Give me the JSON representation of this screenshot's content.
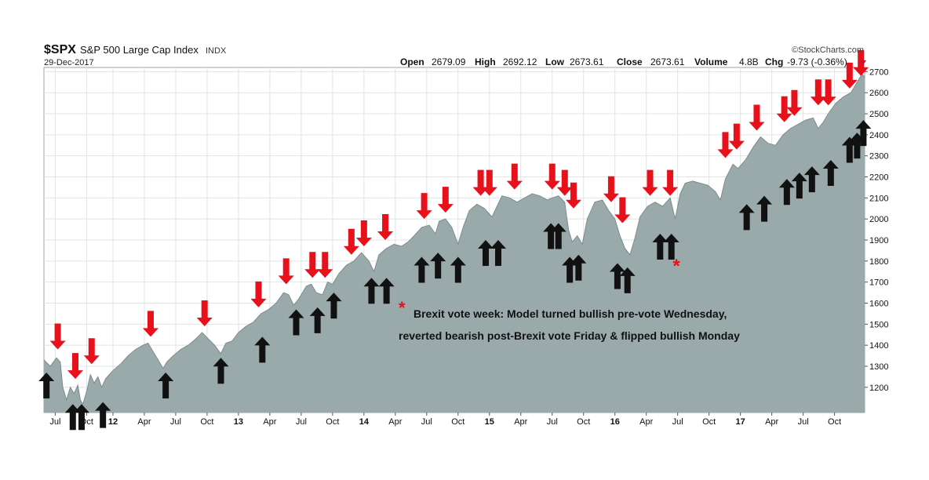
{
  "header": {
    "ticker": "$SPX",
    "index_name": "S&P 500 Large Cap Index",
    "exchange": "INDX",
    "date": "29-Dec-2017",
    "watermark": "©StockCharts.com",
    "open_label": "Open",
    "open_value": "2679.09",
    "high_label": "High",
    "high_value": "2692.12",
    "low_label": "Low",
    "low_value": "2673.61",
    "close_label": "Close",
    "close_value": "2673.61",
    "volume_label": "Volume",
    "volume_value": "4.8B",
    "chg_label": "Chg",
    "chg_value": "-9.73 (-0.36%)"
  },
  "annotation": {
    "asterisk": "*",
    "line1": "Brexit vote week: Model turned bullish pre-vote Wednesday,",
    "line2": "reverted bearish post-Brexit vote Friday & flipped bullish Monday"
  },
  "colors": {
    "area_fill": "#9aa9aa",
    "area_line": "#7d8c8e",
    "bearish_arrow": "#e8101a",
    "bullish_arrow": "#111111",
    "grid": "#dfe4e5"
  },
  "chart_data": {
    "type": "area",
    "title": "$SPX S&P 500 Large Cap Index INDX",
    "x_range": [
      2011.45,
      2017.99
    ],
    "ylim": [
      1080,
      2720
    ],
    "y_ticks": [
      1200,
      1300,
      1400,
      1500,
      1600,
      1700,
      1800,
      1900,
      2000,
      2100,
      2200,
      2300,
      2400,
      2500,
      2600,
      2700
    ],
    "x_ticks": [
      {
        "t": 2011.54,
        "label": "Jul"
      },
      {
        "t": 2011.79,
        "label": "Oct"
      },
      {
        "t": 2012.0,
        "label": "12"
      },
      {
        "t": 2012.25,
        "label": "Apr"
      },
      {
        "t": 2012.5,
        "label": "Jul"
      },
      {
        "t": 2012.75,
        "label": "Oct"
      },
      {
        "t": 2013.0,
        "label": "13"
      },
      {
        "t": 2013.25,
        "label": "Apr"
      },
      {
        "t": 2013.5,
        "label": "Jul"
      },
      {
        "t": 2013.75,
        "label": "Oct"
      },
      {
        "t": 2014.0,
        "label": "14"
      },
      {
        "t": 2014.25,
        "label": "Apr"
      },
      {
        "t": 2014.5,
        "label": "Jul"
      },
      {
        "t": 2014.75,
        "label": "Oct"
      },
      {
        "t": 2015.0,
        "label": "15"
      },
      {
        "t": 2015.25,
        "label": "Apr"
      },
      {
        "t": 2015.5,
        "label": "Jul"
      },
      {
        "t": 2015.75,
        "label": "Oct"
      },
      {
        "t": 2016.0,
        "label": "16"
      },
      {
        "t": 2016.25,
        "label": "Apr"
      },
      {
        "t": 2016.5,
        "label": "Jul"
      },
      {
        "t": 2016.75,
        "label": "Oct"
      },
      {
        "t": 2017.0,
        "label": "17"
      },
      {
        "t": 2017.25,
        "label": "Apr"
      },
      {
        "t": 2017.5,
        "label": "Jul"
      },
      {
        "t": 2017.75,
        "label": "Oct"
      }
    ],
    "series": [
      {
        "name": "$SPX close",
        "points": [
          [
            2011.45,
            1330
          ],
          [
            2011.5,
            1300
          ],
          [
            2011.55,
            1340
          ],
          [
            2011.58,
            1320
          ],
          [
            2011.6,
            1200
          ],
          [
            2011.63,
            1140
          ],
          [
            2011.66,
            1200
          ],
          [
            2011.69,
            1170
          ],
          [
            2011.72,
            1210
          ],
          [
            2011.74,
            1140
          ],
          [
            2011.76,
            1120
          ],
          [
            2011.79,
            1180
          ],
          [
            2011.82,
            1260
          ],
          [
            2011.85,
            1220
          ],
          [
            2011.88,
            1250
          ],
          [
            2011.91,
            1200
          ],
          [
            2011.94,
            1240
          ],
          [
            2011.97,
            1260
          ],
          [
            2012.0,
            1280
          ],
          [
            2012.06,
            1310
          ],
          [
            2012.12,
            1350
          ],
          [
            2012.18,
            1380
          ],
          [
            2012.24,
            1400
          ],
          [
            2012.28,
            1410
          ],
          [
            2012.32,
            1370
          ],
          [
            2012.36,
            1330
          ],
          [
            2012.4,
            1290
          ],
          [
            2012.43,
            1320
          ],
          [
            2012.48,
            1350
          ],
          [
            2012.54,
            1380
          ],
          [
            2012.6,
            1400
          ],
          [
            2012.66,
            1430
          ],
          [
            2012.71,
            1460
          ],
          [
            2012.76,
            1430
          ],
          [
            2012.81,
            1400
          ],
          [
            2012.86,
            1360
          ],
          [
            2012.9,
            1410
          ],
          [
            2012.95,
            1420
          ],
          [
            2013.0,
            1460
          ],
          [
            2013.06,
            1490
          ],
          [
            2013.12,
            1510
          ],
          [
            2013.18,
            1550
          ],
          [
            2013.24,
            1570
          ],
          [
            2013.3,
            1600
          ],
          [
            2013.36,
            1650
          ],
          [
            2013.4,
            1640
          ],
          [
            2013.44,
            1590
          ],
          [
            2013.48,
            1620
          ],
          [
            2013.54,
            1680
          ],
          [
            2013.58,
            1690
          ],
          [
            2013.62,
            1650
          ],
          [
            2013.67,
            1640
          ],
          [
            2013.71,
            1700
          ],
          [
            2013.75,
            1690
          ],
          [
            2013.8,
            1740
          ],
          [
            2013.86,
            1780
          ],
          [
            2013.92,
            1800
          ],
          [
            2013.98,
            1840
          ],
          [
            2014.04,
            1800
          ],
          [
            2014.08,
            1750
          ],
          [
            2014.12,
            1830
          ],
          [
            2014.18,
            1860
          ],
          [
            2014.24,
            1880
          ],
          [
            2014.3,
            1870
          ],
          [
            2014.35,
            1890
          ],
          [
            2014.4,
            1920
          ],
          [
            2014.46,
            1960
          ],
          [
            2014.52,
            1970
          ],
          [
            2014.57,
            1930
          ],
          [
            2014.6,
            1990
          ],
          [
            2014.65,
            2000
          ],
          [
            2014.7,
            1960
          ],
          [
            2014.75,
            1880
          ],
          [
            2014.79,
            1960
          ],
          [
            2014.84,
            2040
          ],
          [
            2014.9,
            2070
          ],
          [
            2014.96,
            2050
          ],
          [
            2015.02,
            2010
          ],
          [
            2015.06,
            2060
          ],
          [
            2015.1,
            2110
          ],
          [
            2015.16,
            2100
          ],
          [
            2015.22,
            2080
          ],
          [
            2015.28,
            2100
          ],
          [
            2015.34,
            2120
          ],
          [
            2015.4,
            2110
          ],
          [
            2015.46,
            2090
          ],
          [
            2015.5,
            2100
          ],
          [
            2015.55,
            2110
          ],
          [
            2015.6,
            2080
          ],
          [
            2015.63,
            1950
          ],
          [
            2015.66,
            1890
          ],
          [
            2015.7,
            1920
          ],
          [
            2015.74,
            1880
          ],
          [
            2015.78,
            2000
          ],
          [
            2015.84,
            2080
          ],
          [
            2015.9,
            2090
          ],
          [
            2015.95,
            2040
          ],
          [
            2016.0,
            2000
          ],
          [
            2016.04,
            1920
          ],
          [
            2016.08,
            1860
          ],
          [
            2016.12,
            1830
          ],
          [
            2016.16,
            1910
          ],
          [
            2016.2,
            2010
          ],
          [
            2016.26,
            2060
          ],
          [
            2016.32,
            2080
          ],
          [
            2016.38,
            2060
          ],
          [
            2016.44,
            2100
          ],
          [
            2016.48,
            2000
          ],
          [
            2016.52,
            2120
          ],
          [
            2016.56,
            2170
          ],
          [
            2016.62,
            2180
          ],
          [
            2016.68,
            2170
          ],
          [
            2016.74,
            2160
          ],
          [
            2016.8,
            2130
          ],
          [
            2016.84,
            2090
          ],
          [
            2016.88,
            2190
          ],
          [
            2016.94,
            2260
          ],
          [
            2016.98,
            2240
          ],
          [
            2017.04,
            2280
          ],
          [
            2017.1,
            2340
          ],
          [
            2017.16,
            2390
          ],
          [
            2017.22,
            2360
          ],
          [
            2017.28,
            2350
          ],
          [
            2017.34,
            2400
          ],
          [
            2017.4,
            2430
          ],
          [
            2017.46,
            2450
          ],
          [
            2017.52,
            2470
          ],
          [
            2017.58,
            2480
          ],
          [
            2017.62,
            2430
          ],
          [
            2017.66,
            2460
          ],
          [
            2017.7,
            2500
          ],
          [
            2017.76,
            2550
          ],
          [
            2017.82,
            2580
          ],
          [
            2017.88,
            2600
          ],
          [
            2017.93,
            2650
          ],
          [
            2017.97,
            2690
          ],
          [
            2017.99,
            2673.61
          ]
        ]
      }
    ],
    "bearish_signals": [
      {
        "t": 2011.56,
        "y": 1380
      },
      {
        "t": 2011.7,
        "y": 1240
      },
      {
        "t": 2011.83,
        "y": 1310
      },
      {
        "t": 2012.3,
        "y": 1440
      },
      {
        "t": 2012.73,
        "y": 1490
      },
      {
        "t": 2013.16,
        "y": 1580
      },
      {
        "t": 2013.38,
        "y": 1690
      },
      {
        "t": 2013.59,
        "y": 1720
      },
      {
        "t": 2013.69,
        "y": 1720
      },
      {
        "t": 2013.9,
        "y": 1830
      },
      {
        "t": 2014.0,
        "y": 1870
      },
      {
        "t": 2014.17,
        "y": 1900
      },
      {
        "t": 2014.48,
        "y": 2000
      },
      {
        "t": 2014.65,
        "y": 2030
      },
      {
        "t": 2014.93,
        "y": 2110
      },
      {
        "t": 2015.0,
        "y": 2110
      },
      {
        "t": 2015.2,
        "y": 2140
      },
      {
        "t": 2015.5,
        "y": 2140
      },
      {
        "t": 2015.6,
        "y": 2110
      },
      {
        "t": 2015.67,
        "y": 2050
      },
      {
        "t": 2015.97,
        "y": 2080
      },
      {
        "t": 2016.06,
        "y": 1980
      },
      {
        "t": 2016.28,
        "y": 2110
      },
      {
        "t": 2016.44,
        "y": 2110
      },
      {
        "t": 2016.88,
        "y": 2290
      },
      {
        "t": 2016.97,
        "y": 2330
      },
      {
        "t": 2017.13,
        "y": 2420
      },
      {
        "t": 2017.35,
        "y": 2460
      },
      {
        "t": 2017.43,
        "y": 2490
      },
      {
        "t": 2017.62,
        "y": 2540
      },
      {
        "t": 2017.7,
        "y": 2540
      },
      {
        "t": 2017.87,
        "y": 2620
      },
      {
        "t": 2017.96,
        "y": 2680
      }
    ],
    "bullish_signals": [
      {
        "t": 2011.47,
        "y": 1270
      },
      {
        "t": 2011.68,
        "y": 1120
      },
      {
        "t": 2011.75,
        "y": 1120
      },
      {
        "t": 2011.92,
        "y": 1130
      },
      {
        "t": 2012.42,
        "y": 1270
      },
      {
        "t": 2012.86,
        "y": 1340
      },
      {
        "t": 2013.19,
        "y": 1440
      },
      {
        "t": 2013.46,
        "y": 1570
      },
      {
        "t": 2013.63,
        "y": 1580
      },
      {
        "t": 2013.76,
        "y": 1650
      },
      {
        "t": 2014.06,
        "y": 1720
      },
      {
        "t": 2014.18,
        "y": 1720
      },
      {
        "t": 2014.46,
        "y": 1820
      },
      {
        "t": 2014.59,
        "y": 1840
      },
      {
        "t": 2014.75,
        "y": 1820
      },
      {
        "t": 2014.97,
        "y": 1900
      },
      {
        "t": 2015.07,
        "y": 1900
      },
      {
        "t": 2015.49,
        "y": 1980
      },
      {
        "t": 2015.55,
        "y": 1980
      },
      {
        "t": 2015.64,
        "y": 1820
      },
      {
        "t": 2015.71,
        "y": 1830
      },
      {
        "t": 2016.02,
        "y": 1790
      },
      {
        "t": 2016.1,
        "y": 1770
      },
      {
        "t": 2016.36,
        "y": 1930
      },
      {
        "t": 2016.45,
        "y": 1930
      },
      {
        "t": 2017.05,
        "y": 2070
      },
      {
        "t": 2017.19,
        "y": 2110
      },
      {
        "t": 2017.37,
        "y": 2190
      },
      {
        "t": 2017.47,
        "y": 2220
      },
      {
        "t": 2017.57,
        "y": 2250
      },
      {
        "t": 2017.72,
        "y": 2280
      },
      {
        "t": 2017.87,
        "y": 2390
      },
      {
        "t": 2017.93,
        "y": 2410
      },
      {
        "t": 2017.98,
        "y": 2470
      }
    ],
    "brexit_marker": {
      "t": 2016.49,
      "y": 1800
    }
  }
}
